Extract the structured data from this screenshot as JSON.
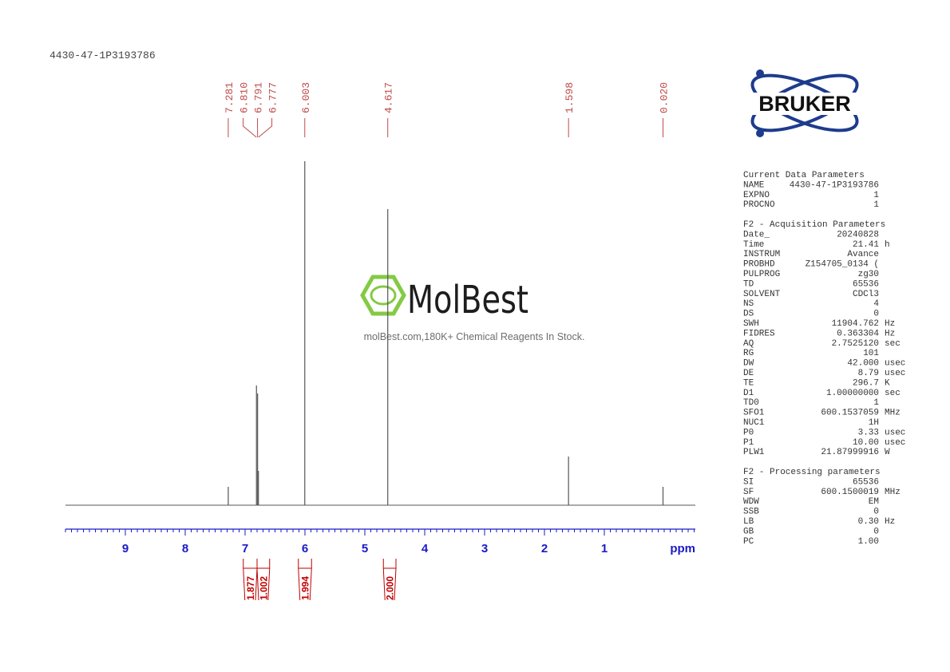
{
  "sample_id": "4430-47-1P3193786",
  "logo": "BRUKER",
  "watermark": {
    "name": "MolBest",
    "tagline": "molBest.com,180K+ Chemical Reagents In Stock."
  },
  "chart_data": {
    "type": "nmr-spectrum",
    "x_label": "ppm",
    "xlim": [
      10,
      -0.52
    ],
    "xticks": [
      9,
      8,
      7,
      6,
      5,
      4,
      3,
      2,
      1
    ],
    "xminor_step": 0.1,
    "ylim": [
      0,
      440
    ],
    "axis_color": "#1a1ac8",
    "x": [
      7.281,
      6.81,
      6.791,
      6.777,
      6.003,
      4.617,
      1.598,
      0.02
    ],
    "peak_labels": [
      "7.281",
      "6.810",
      "6.791",
      "6.777",
      "6.003",
      "4.617",
      "1.598",
      "0.020"
    ],
    "peak_label_color": "#c04a4a",
    "series": [
      {
        "color": "#555555",
        "values": [
          23,
          150,
          140,
          43,
          431,
          371,
          61,
          23
        ]
      }
    ],
    "integrals": {
      "color": "#c00000",
      "ranges": [
        [
          7.03,
          6.8
        ],
        [
          6.8,
          6.59
        ],
        [
          6.11,
          5.89
        ],
        [
          4.69,
          4.48
        ]
      ],
      "values": [
        1.877,
        1.002,
        1.994,
        2
      ],
      "value_labels": [
        "1.877",
        "1.002",
        "1.994",
        "2.000"
      ]
    }
  },
  "parameters": [
    {
      "title": "Current Data Parameters",
      "rows": [
        [
          "NAME",
          "4430-47-1P3193786"
        ],
        [
          "EXPNO",
          "1"
        ],
        [
          "PROCNO",
          "1"
        ]
      ]
    },
    {
      "title": "F2 - Acquisition Parameters",
      "rows": [
        [
          "Date_",
          "20240828"
        ],
        [
          "Time",
          "21.41",
          "h"
        ],
        [
          "INSTRUM",
          "Avance"
        ],
        [
          "PROBHD",
          "Z154705_0134 ("
        ],
        [
          "PULPROG",
          "zg30"
        ],
        [
          "TD",
          "65536"
        ],
        [
          "SOLVENT",
          "CDCl3"
        ],
        [
          "NS",
          "4"
        ],
        [
          "DS",
          "0"
        ],
        [
          "SWH",
          "11904.762",
          "Hz"
        ],
        [
          "FIDRES",
          "0.363304",
          "Hz"
        ],
        [
          "AQ",
          "2.7525120",
          "sec"
        ],
        [
          "RG",
          "101"
        ],
        [
          "DW",
          "42.000",
          "usec"
        ],
        [
          "DE",
          "8.79",
          "usec"
        ],
        [
          "TE",
          "296.7",
          "K"
        ],
        [
          "D1",
          "1.00000000",
          "sec"
        ],
        [
          "TD0",
          "1"
        ],
        [
          "SFO1",
          "600.1537059",
          "MHz"
        ],
        [
          "NUC1",
          "1H"
        ],
        [
          "P0",
          "3.33",
          "usec"
        ],
        [
          "P1",
          "10.00",
          "usec"
        ],
        [
          "PLW1",
          "21.87999916",
          "W"
        ]
      ]
    },
    {
      "title": "F2 - Processing parameters",
      "rows": [
        [
          "SI",
          "65536"
        ],
        [
          "SF",
          "600.1500019",
          "MHz"
        ],
        [
          "WDW",
          "EM"
        ],
        [
          "SSB",
          "0"
        ],
        [
          "LB",
          "0.30",
          "Hz"
        ],
        [
          "GB",
          "0"
        ],
        [
          "PC",
          "1.00"
        ]
      ]
    }
  ]
}
